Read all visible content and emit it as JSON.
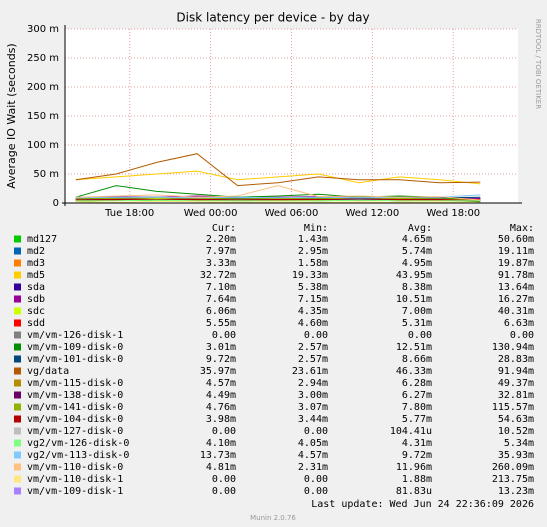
{
  "chart_data": {
    "type": "line",
    "title": "Disk latency per device - by day",
    "y_label": "Average IO Wait (seconds)",
    "side_text": "RRDTOOL / TOBI OETIKER",
    "x": [
      14,
      17,
      20,
      23,
      26,
      29,
      32,
      35,
      38,
      41,
      44
    ],
    "xlim": [
      13.2,
      46.8
    ],
    "xticks": [
      {
        "value": 18,
        "label": "Tue 18:00"
      },
      {
        "value": 24,
        "label": "Wed 00:00"
      },
      {
        "value": 30,
        "label": "Wed 06:00"
      },
      {
        "value": 36,
        "label": "Wed 12:00"
      },
      {
        "value": 42,
        "label": "Wed 18:00"
      }
    ],
    "ylim": [
      0,
      0.3
    ],
    "yticks": [
      0,
      {
        "value": 0.05,
        "label": "50 m"
      },
      {
        "value": 0.1,
        "label": "100 m"
      },
      {
        "value": 0.15,
        "label": "150 m"
      },
      {
        "value": 0.2,
        "label": "200 m"
      },
      {
        "value": 0.25,
        "label": "250 m"
      },
      {
        "value": 0.3,
        "label": "300 m"
      }
    ],
    "grid": true,
    "stat_headers": [
      "Cur:",
      "Min:",
      "Avg:",
      "Max:"
    ],
    "series": [
      {
        "name": "md127",
        "color": "#00CC00",
        "values": [
          0.003,
          0.005,
          0.004,
          0.006,
          0.004,
          0.005,
          0.004,
          0.005,
          0.004,
          0.005,
          0.002
        ],
        "stats": [
          "2.20m",
          "1.43m",
          "4.65m",
          "50.60m"
        ]
      },
      {
        "name": "md2",
        "color": "#0066B3",
        "values": [
          0.006,
          0.005,
          0.006,
          0.005,
          0.006,
          0.007,
          0.005,
          0.006,
          0.005,
          0.006,
          0.008
        ],
        "stats": [
          "7.97m",
          "2.95m",
          "5.74m",
          "19.11m"
        ]
      },
      {
        "name": "md3",
        "color": "#FF8000",
        "values": [
          0.004,
          0.005,
          0.006,
          0.005,
          0.004,
          0.005,
          0.005,
          0.006,
          0.004,
          0.005,
          0.003
        ],
        "stats": [
          "3.33m",
          "1.58m",
          "4.95m",
          "19.87m"
        ]
      },
      {
        "name": "md5",
        "color": "#FFCC00",
        "values": [
          0.04,
          0.045,
          0.05,
          0.055,
          0.04,
          0.045,
          0.05,
          0.035,
          0.045,
          0.04,
          0.033
        ],
        "stats": [
          "32.72m",
          "19.33m",
          "43.95m",
          "91.78m"
        ]
      },
      {
        "name": "sda",
        "color": "#330099",
        "values": [
          0.008,
          0.009,
          0.008,
          0.009,
          0.008,
          0.008,
          0.009,
          0.008,
          0.008,
          0.009,
          0.007
        ],
        "stats": [
          "7.10m",
          "5.38m",
          "8.38m",
          "13.64m"
        ]
      },
      {
        "name": "sdb",
        "color": "#990099",
        "values": [
          0.01,
          0.011,
          0.01,
          0.012,
          0.01,
          0.01,
          0.011,
          0.01,
          0.011,
          0.01,
          0.008
        ],
        "stats": [
          "7.64m",
          "7.15m",
          "10.51m",
          "16.27m"
        ]
      },
      {
        "name": "sdc",
        "color": "#CCFF00",
        "values": [
          0.006,
          0.007,
          0.008,
          0.007,
          0.006,
          0.007,
          0.008,
          0.007,
          0.006,
          0.007,
          0.006
        ],
        "stats": [
          "6.06m",
          "4.35m",
          "7.00m",
          "40.31m"
        ]
      },
      {
        "name": "sdd",
        "color": "#FF0000",
        "values": [
          0.005,
          0.005,
          0.006,
          0.005,
          0.005,
          0.005,
          0.006,
          0.005,
          0.005,
          0.005,
          0.006
        ],
        "stats": [
          "5.55m",
          "4.60m",
          "5.31m",
          "6.63m"
        ]
      },
      {
        "name": "vm/vm-126-disk-1",
        "color": "#808080",
        "values": [
          0,
          0,
          0,
          0,
          0,
          0,
          0,
          0,
          0,
          0,
          0
        ],
        "stats": [
          "0.00",
          "0.00",
          "0.00",
          "0.00"
        ]
      },
      {
        "name": "vm/vm-109-disk-0",
        "color": "#008F00",
        "values": [
          0.01,
          0.03,
          0.02,
          0.015,
          0.01,
          0.012,
          0.015,
          0.01,
          0.012,
          0.01,
          0.003
        ],
        "stats": [
          "3.01m",
          "2.57m",
          "12.51m",
          "130.94m"
        ]
      },
      {
        "name": "vm/vm-101-disk-0",
        "color": "#00487D",
        "values": [
          0.008,
          0.009,
          0.01,
          0.008,
          0.009,
          0.008,
          0.009,
          0.008,
          0.008,
          0.009,
          0.01
        ],
        "stats": [
          "9.72m",
          "2.57m",
          "8.66m",
          "28.83m"
        ]
      },
      {
        "name": "vg/data",
        "color": "#B35A00",
        "values": [
          0.04,
          0.05,
          0.07,
          0.085,
          0.03,
          0.035,
          0.045,
          0.04,
          0.04,
          0.035,
          0.036
        ],
        "stats": [
          "35.97m",
          "23.61m",
          "46.33m",
          "91.94m"
        ]
      },
      {
        "name": "vm/vm-115-disk-0",
        "color": "#B38F00",
        "values": [
          0.006,
          0.007,
          0.006,
          0.006,
          0.005,
          0.007,
          0.006,
          0.006,
          0.007,
          0.006,
          0.005
        ],
        "stats": [
          "4.57m",
          "2.94m",
          "6.28m",
          "49.37m"
        ]
      },
      {
        "name": "vm/vm-138-disk-0",
        "color": "#6B006B",
        "values": [
          0.006,
          0.007,
          0.006,
          0.007,
          0.006,
          0.006,
          0.006,
          0.007,
          0.006,
          0.006,
          0.004
        ],
        "stats": [
          "4.49m",
          "3.00m",
          "6.27m",
          "32.81m"
        ]
      },
      {
        "name": "vm/vm-141-disk-0",
        "color": "#8FB300",
        "values": [
          0.007,
          0.008,
          0.009,
          0.008,
          0.007,
          0.008,
          0.007,
          0.009,
          0.008,
          0.007,
          0.005
        ],
        "stats": [
          "4.76m",
          "3.07m",
          "7.80m",
          "115.57m"
        ]
      },
      {
        "name": "vm/vm-104-disk-0",
        "color": "#B30000",
        "values": [
          0.005,
          0.006,
          0.006,
          0.006,
          0.005,
          0.006,
          0.006,
          0.005,
          0.006,
          0.006,
          0.004
        ],
        "stats": [
          "3.98m",
          "3.44m",
          "5.77m",
          "54.63m"
        ]
      },
      {
        "name": "vm/vm-127-disk-0",
        "color": "#BEBEBE",
        "values": [
          0,
          0,
          0,
          0,
          0,
          0,
          0,
          0,
          0,
          0,
          0
        ],
        "stats": [
          "0.00",
          "0.00",
          "104.41u",
          "10.52m"
        ]
      },
      {
        "name": "vg2/vm-126-disk-0",
        "color": "#80FF80",
        "values": [
          0.004,
          0.004,
          0.005,
          0.004,
          0.004,
          0.004,
          0.004,
          0.005,
          0.004,
          0.004,
          0.004
        ],
        "stats": [
          "4.10m",
          "4.05m",
          "4.31m",
          "5.34m"
        ]
      },
      {
        "name": "vg2/vm-113-disk-0",
        "color": "#80C9FF",
        "values": [
          0.009,
          0.01,
          0.01,
          0.009,
          0.01,
          0.009,
          0.01,
          0.009,
          0.01,
          0.01,
          0.014
        ],
        "stats": [
          "13.73m",
          "4.57m",
          "9.72m",
          "35.93m"
        ]
      },
      {
        "name": "vm/vm-110-disk-0",
        "color": "#FFC080",
        "values": [
          0.01,
          0.012,
          0.014,
          0.01,
          0.012,
          0.03,
          0.011,
          0.012,
          0.01,
          0.011,
          0.005
        ],
        "stats": [
          "4.81m",
          "2.31m",
          "11.96m",
          "260.09m"
        ]
      },
      {
        "name": "vm/vm-110-disk-1",
        "color": "#FFE680",
        "values": [
          0.002,
          0.001,
          0.003,
          0.002,
          0.001,
          0.002,
          0.001,
          0.002,
          0.001,
          0.002,
          0
        ],
        "stats": [
          "0.00",
          "0.00",
          "1.88m",
          "213.75m"
        ]
      },
      {
        "name": "vm/vm-109-disk-1",
        "color": "#AA80FF",
        "values": [
          0,
          0,
          0,
          0,
          0,
          0,
          0,
          0,
          0,
          0,
          0
        ],
        "stats": [
          "0.00",
          "0.00",
          "81.83u",
          "13.23m"
        ]
      }
    ],
    "last_update": "Last update: Wed Jun 24 22:36:09 2026",
    "footer": "Munin 2.0.76"
  }
}
